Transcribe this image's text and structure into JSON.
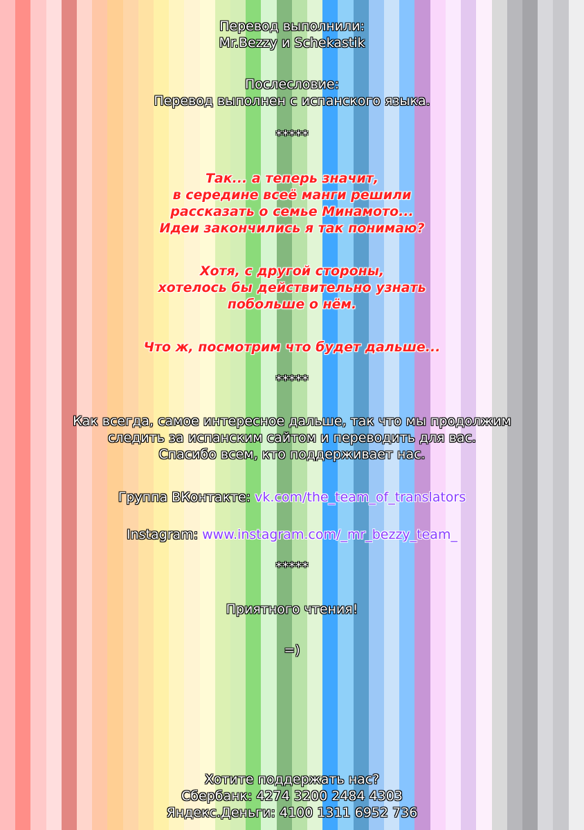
{
  "stripe_colors": [
    "#ffbdbd",
    "#ff8e88",
    "#ffc9c9",
    "#ffdede",
    "#e28782",
    "#ffd6cc",
    "#ffc7a6",
    "#ffcf93",
    "#fed6a8",
    "#ffe2a3",
    "#fff1a8",
    "#fff5c1",
    "#fff4d3",
    "#fffbd6",
    "#dcf1b3",
    "#d4eeb6",
    "#8bdb7a",
    "#d6f5d0",
    "#84b87e",
    "#b9e2a8",
    "#e1f5d5",
    "#3fa7ff",
    "#8fd0f9",
    "#5b9ecd",
    "#9cc8f7",
    "#cae2fa",
    "#86c4ff",
    "#c796d6",
    "#fad7fb",
    "#fbeafe",
    "#e3c8f0",
    "#fdf0fc",
    "#d9d9d9",
    "#b8b8bc",
    "#a4a4a8",
    "#d8d8dc",
    "#c8c8cc",
    "#eeeeef"
  ],
  "credits": {
    "line1": "Перевод выполнили:",
    "line2": "Mr.Bezzy и Schekastik"
  },
  "afterword": {
    "title": "Послесловие:",
    "text": "Перевод выполнен с испанского языка."
  },
  "separator": "*****",
  "comment1": [
    "Так... а теперь значит,",
    "в середине всеё манги решили",
    "рассказать о семье Минамото...",
    "Идеи закончились я так понимаю?"
  ],
  "comment2": [
    "Хотя, с другой стороны,",
    "хотелось бы действительно узнать",
    "побольше о нём."
  ],
  "comment3": "Что ж, посмотрим что будет дальше...",
  "message": [
    "Как всегда, самое интересное дальше, так что мы продолжим",
    "следить за испанским сайтом и переводить для вас.",
    "Спасибо всем, кто поддерживает нас."
  ],
  "vk": {
    "label": "Группа ВКонтакте:",
    "url": "vk.com/the_team_of_translators"
  },
  "instagram": {
    "label": "Instagram:",
    "url": "www.instagram.com/_mr_bezzy_team_"
  },
  "enjoy": "Приятного чтения!",
  "smiley": "=)",
  "support": {
    "title": "Хотите поддержать нас?",
    "sberbank": "Сбербанк: 4274 3200 2484 4303",
    "yandex": "Яндекс.Деньги: 4100 1311 6952 736"
  }
}
